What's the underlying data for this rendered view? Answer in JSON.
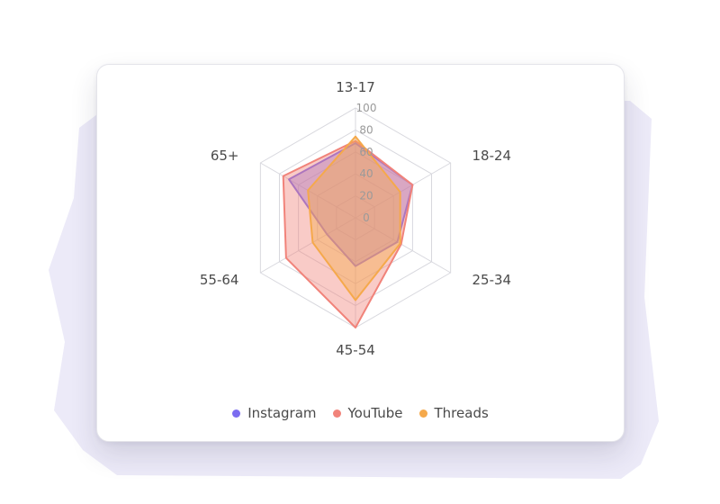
{
  "chart_data": {
    "type": "radar",
    "axes": [
      "13-17",
      "18-24",
      "25-34",
      "45-54",
      "55-64",
      "65+"
    ],
    "r_range": [
      0,
      100
    ],
    "ticks": [
      0,
      20,
      40,
      60,
      80,
      100
    ],
    "series": [
      {
        "name": "Instagram",
        "color": "#7b6cf0",
        "values": [
          68,
          60,
          44,
          44,
          30,
          70
        ]
      },
      {
        "name": "YouTube",
        "color": "#f1837a",
        "values": [
          70,
          60,
          48,
          100,
          73,
          76
        ]
      },
      {
        "name": "Threads",
        "color": "#f5a94b",
        "values": [
          74,
          47,
          47,
          75,
          45,
          50
        ]
      }
    ],
    "grid": true,
    "legend_position": "bottom"
  },
  "colors": {
    "grid": "#d8d8de",
    "backdrop": "#eceaf8"
  }
}
